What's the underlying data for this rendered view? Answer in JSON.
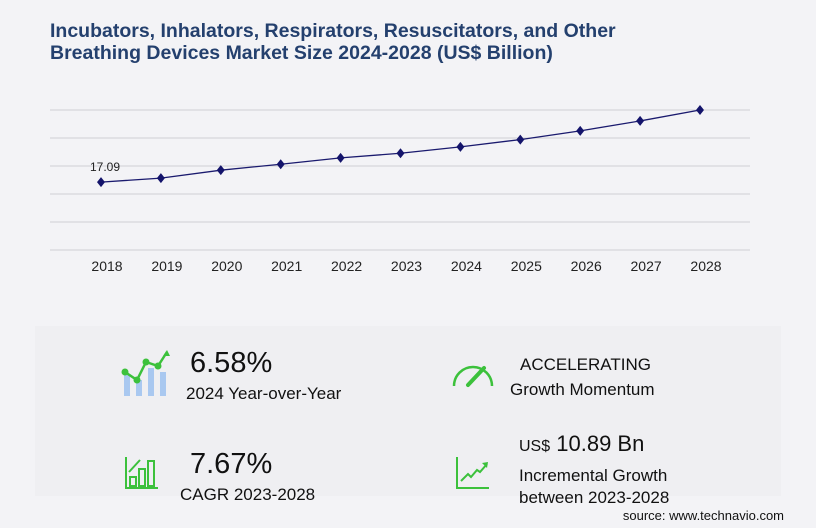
{
  "title": "Incubators, Inhalators, Respirators, Resuscitators, and Other Breathing Devices Market Size 2024-2028 (US$ Billion)",
  "chart_data": {
    "type": "line",
    "title": "Incubators, Inhalators, Respirators, Resuscitators, and Other Breathing Devices Market Size 2024-2028 (US$ Billion)",
    "categories": [
      "2018",
      "2019",
      "2020",
      "2021",
      "2022",
      "2023",
      "2024",
      "2025",
      "2026",
      "2027",
      "2028"
    ],
    "values": [
      17.09,
      18.1,
      20.1,
      21.6,
      23.2,
      24.36,
      25.96,
      27.8,
      30.0,
      32.5,
      35.25
    ],
    "data_labels": {
      "2018": "17.09"
    },
    "ylim": [
      0,
      35.25
    ],
    "grid": true,
    "line_color": "#1a1a6e",
    "marker_color": "#14146b",
    "xlabel": "",
    "ylabel": ""
  },
  "stats": {
    "yoy_value": "6.58%",
    "yoy_label": "2024 Year-over-Year",
    "momentum_value": "ACCELERATING",
    "momentum_label": "Growth Momentum",
    "cagr_value": "7.67%",
    "cagr_label": "CAGR 2023-2028",
    "incremental_prefix": "US$",
    "incremental_value": "10.89 Bn",
    "incremental_label_1": "Incremental Growth",
    "incremental_label_2": "between 2023-2028"
  },
  "accent_green": "#3cc13c",
  "source": "source: www.technavio.com"
}
